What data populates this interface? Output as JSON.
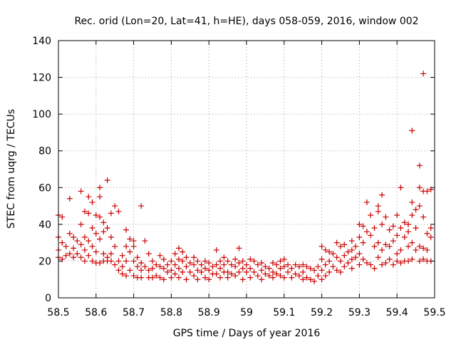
{
  "chart_data": {
    "type": "scatter",
    "title": "Rec. orid (Lon=20, Lat=41, h=HE), days 058-059, 2016, window 002",
    "xlabel": "GPS time / Days of year 2016",
    "ylabel": "STEC from uqrg / TECUs",
    "xlim": [
      58.5,
      59.5
    ],
    "ylim": [
      0,
      140
    ],
    "xticks": [
      "58.5",
      "58.6",
      "58.7",
      "58.8",
      "58.9",
      "59",
      "59.1",
      "59.2",
      "59.3",
      "59.4",
      "59.5"
    ],
    "yticks": [
      "0",
      "20",
      "40",
      "60",
      "80",
      "100",
      "120",
      "140"
    ],
    "grid": true,
    "marker": "plus",
    "color": "#cc0000",
    "points": [
      [
        58.5,
        45
      ],
      [
        58.5,
        33
      ],
      [
        58.5,
        26
      ],
      [
        58.5,
        22
      ],
      [
        58.51,
        44
      ],
      [
        58.51,
        30
      ],
      [
        58.51,
        21
      ],
      [
        58.52,
        28
      ],
      [
        58.52,
        23
      ],
      [
        58.53,
        54
      ],
      [
        58.53,
        35
      ],
      [
        58.53,
        24
      ],
      [
        58.54,
        33
      ],
      [
        58.54,
        27
      ],
      [
        58.54,
        22
      ],
      [
        58.55,
        31
      ],
      [
        58.55,
        24
      ],
      [
        58.56,
        58
      ],
      [
        58.56,
        40
      ],
      [
        58.56,
        29
      ],
      [
        58.56,
        22
      ],
      [
        58.57,
        47
      ],
      [
        58.57,
        33
      ],
      [
        58.57,
        26
      ],
      [
        58.57,
        20
      ],
      [
        58.58,
        55
      ],
      [
        58.58,
        46
      ],
      [
        58.58,
        31
      ],
      [
        58.58,
        23
      ],
      [
        58.59,
        52
      ],
      [
        58.59,
        38
      ],
      [
        58.59,
        28
      ],
      [
        58.59,
        20
      ],
      [
        58.6,
        45
      ],
      [
        58.6,
        35
      ],
      [
        58.6,
        25
      ],
      [
        58.6,
        19
      ],
      [
        58.61,
        60
      ],
      [
        58.61,
        55
      ],
      [
        58.61,
        44
      ],
      [
        58.61,
        32
      ],
      [
        58.61,
        19
      ],
      [
        58.62,
        41
      ],
      [
        58.62,
        36
      ],
      [
        58.62,
        24
      ],
      [
        58.62,
        20
      ],
      [
        58.63,
        64
      ],
      [
        58.63,
        38
      ],
      [
        58.63,
        22
      ],
      [
        58.63,
        20
      ],
      [
        58.64,
        46
      ],
      [
        58.64,
        33
      ],
      [
        58.64,
        24
      ],
      [
        58.64,
        20
      ],
      [
        58.65,
        50
      ],
      [
        58.65,
        28
      ],
      [
        58.65,
        18
      ],
      [
        58.66,
        47
      ],
      [
        58.66,
        20
      ],
      [
        58.66,
        15
      ],
      [
        58.67,
        23
      ],
      [
        58.67,
        17
      ],
      [
        58.67,
        13
      ],
      [
        58.68,
        37
      ],
      [
        58.68,
        28
      ],
      [
        58.68,
        20
      ],
      [
        58.68,
        12
      ],
      [
        58.69,
        32
      ],
      [
        58.69,
        25
      ],
      [
        58.69,
        15
      ],
      [
        58.7,
        31
      ],
      [
        58.7,
        28
      ],
      [
        58.7,
        20
      ],
      [
        58.7,
        12
      ],
      [
        58.71,
        22
      ],
      [
        58.71,
        17
      ],
      [
        58.71,
        11
      ],
      [
        58.72,
        50
      ],
      [
        58.72,
        19
      ],
      [
        58.72,
        15
      ],
      [
        58.72,
        11
      ],
      [
        58.73,
        31
      ],
      [
        58.73,
        17
      ],
      [
        58.74,
        24
      ],
      [
        58.74,
        15
      ],
      [
        58.74,
        11
      ],
      [
        58.75,
        20
      ],
      [
        58.75,
        16
      ],
      [
        58.75,
        11
      ],
      [
        58.76,
        18
      ],
      [
        58.76,
        12
      ],
      [
        58.77,
        23
      ],
      [
        58.77,
        17
      ],
      [
        58.77,
        11
      ],
      [
        58.78,
        21
      ],
      [
        58.78,
        16
      ],
      [
        58.78,
        10
      ],
      [
        58.79,
        18
      ],
      [
        58.79,
        14
      ],
      [
        58.8,
        20
      ],
      [
        58.8,
        15
      ],
      [
        58.8,
        11
      ],
      [
        58.81,
        24
      ],
      [
        58.81,
        18
      ],
      [
        58.81,
        13
      ],
      [
        58.82,
        27
      ],
      [
        58.82,
        21
      ],
      [
        58.82,
        16
      ],
      [
        58.82,
        11
      ],
      [
        58.83,
        25
      ],
      [
        58.83,
        20
      ],
      [
        58.83,
        14
      ],
      [
        58.84,
        22
      ],
      [
        58.84,
        17
      ],
      [
        58.84,
        10
      ],
      [
        58.85,
        19
      ],
      [
        58.85,
        14
      ],
      [
        58.86,
        22
      ],
      [
        58.86,
        18
      ],
      [
        58.86,
        12
      ],
      [
        58.87,
        20
      ],
      [
        58.87,
        15
      ],
      [
        58.87,
        10
      ],
      [
        58.88,
        18
      ],
      [
        58.88,
        14
      ],
      [
        58.89,
        20
      ],
      [
        58.89,
        16
      ],
      [
        58.89,
        11
      ],
      [
        58.9,
        19
      ],
      [
        58.9,
        15
      ],
      [
        58.9,
        10
      ],
      [
        58.91,
        17
      ],
      [
        58.91,
        13
      ],
      [
        58.92,
        26
      ],
      [
        58.92,
        18
      ],
      [
        58.92,
        13
      ],
      [
        58.93,
        20
      ],
      [
        58.93,
        16
      ],
      [
        58.93,
        11
      ],
      [
        58.94,
        22
      ],
      [
        58.94,
        18
      ],
      [
        58.94,
        14
      ],
      [
        58.95,
        20
      ],
      [
        58.95,
        14
      ],
      [
        58.95,
        11
      ],
      [
        58.96,
        18
      ],
      [
        58.96,
        13
      ],
      [
        58.97,
        21
      ],
      [
        58.97,
        17
      ],
      [
        58.97,
        12
      ],
      [
        58.98,
        27
      ],
      [
        58.98,
        19
      ],
      [
        58.98,
        14
      ],
      [
        58.99,
        20
      ],
      [
        58.99,
        16
      ],
      [
        58.99,
        10
      ],
      [
        59.0,
        18
      ],
      [
        59.0,
        14
      ],
      [
        59.01,
        21
      ],
      [
        59.01,
        16
      ],
      [
        59.01,
        11
      ],
      [
        59.02,
        20
      ],
      [
        59.02,
        14
      ],
      [
        59.03,
        18
      ],
      [
        59.03,
        12
      ],
      [
        59.04,
        19
      ],
      [
        59.04,
        15
      ],
      [
        59.04,
        10
      ],
      [
        59.05,
        17
      ],
      [
        59.05,
        13
      ],
      [
        59.06,
        16
      ],
      [
        59.06,
        12
      ],
      [
        59.07,
        19
      ],
      [
        59.07,
        14
      ],
      [
        59.07,
        11
      ],
      [
        59.08,
        18
      ],
      [
        59.08,
        13
      ],
      [
        59.09,
        20
      ],
      [
        59.09,
        16
      ],
      [
        59.09,
        12
      ],
      [
        59.1,
        21
      ],
      [
        59.1,
        17
      ],
      [
        59.1,
        11
      ],
      [
        59.11,
        18
      ],
      [
        59.11,
        14
      ],
      [
        59.12,
        16
      ],
      [
        59.12,
        11
      ],
      [
        59.13,
        18
      ],
      [
        59.13,
        13
      ],
      [
        59.14,
        17
      ],
      [
        59.14,
        12
      ],
      [
        59.15,
        18
      ],
      [
        59.15,
        14
      ],
      [
        59.15,
        10
      ],
      [
        59.16,
        17
      ],
      [
        59.16,
        11
      ],
      [
        59.17,
        16
      ],
      [
        59.17,
        10
      ],
      [
        59.18,
        15
      ],
      [
        59.18,
        9
      ],
      [
        59.19,
        17
      ],
      [
        59.19,
        12
      ],
      [
        59.2,
        28
      ],
      [
        59.2,
        21
      ],
      [
        59.2,
        15
      ],
      [
        59.2,
        10
      ],
      [
        59.21,
        26
      ],
      [
        59.21,
        18
      ],
      [
        59.21,
        12
      ],
      [
        59.22,
        25
      ],
      [
        59.22,
        20
      ],
      [
        59.22,
        14
      ],
      [
        59.23,
        24
      ],
      [
        59.23,
        17
      ],
      [
        59.24,
        30
      ],
      [
        59.24,
        22
      ],
      [
        59.24,
        15
      ],
      [
        59.25,
        28
      ],
      [
        59.25,
        20
      ],
      [
        59.25,
        14
      ],
      [
        59.26,
        29
      ],
      [
        59.26,
        23
      ],
      [
        59.26,
        17
      ],
      [
        59.27,
        25
      ],
      [
        59.27,
        19
      ],
      [
        59.28,
        31
      ],
      [
        59.28,
        26
      ],
      [
        59.28,
        21
      ],
      [
        59.28,
        16
      ],
      [
        59.29,
        28
      ],
      [
        59.29,
        22
      ],
      [
        59.3,
        40
      ],
      [
        59.3,
        33
      ],
      [
        59.3,
        24
      ],
      [
        59.3,
        18
      ],
      [
        59.31,
        39
      ],
      [
        59.31,
        30
      ],
      [
        59.31,
        21
      ],
      [
        59.32,
        52
      ],
      [
        59.32,
        36
      ],
      [
        59.32,
        19
      ],
      [
        59.33,
        45
      ],
      [
        59.33,
        34
      ],
      [
        59.33,
        18
      ],
      [
        59.34,
        38
      ],
      [
        59.34,
        28
      ],
      [
        59.34,
        16
      ],
      [
        59.35,
        50
      ],
      [
        59.35,
        47
      ],
      [
        59.35,
        30
      ],
      [
        59.35,
        22
      ],
      [
        59.36,
        56
      ],
      [
        59.36,
        40
      ],
      [
        59.36,
        26
      ],
      [
        59.36,
        18
      ],
      [
        59.37,
        44
      ],
      [
        59.37,
        29
      ],
      [
        59.37,
        19
      ],
      [
        59.38,
        37
      ],
      [
        59.38,
        28
      ],
      [
        59.38,
        21
      ],
      [
        59.39,
        39
      ],
      [
        59.39,
        31
      ],
      [
        59.39,
        18
      ],
      [
        59.4,
        45
      ],
      [
        59.4,
        34
      ],
      [
        59.4,
        24
      ],
      [
        59.4,
        20
      ],
      [
        59.41,
        60
      ],
      [
        59.41,
        38
      ],
      [
        59.41,
        26
      ],
      [
        59.41,
        19
      ],
      [
        59.42,
        41
      ],
      [
        59.42,
        33
      ],
      [
        59.42,
        20
      ],
      [
        59.43,
        40
      ],
      [
        59.43,
        36
      ],
      [
        59.43,
        28
      ],
      [
        59.43,
        20
      ],
      [
        59.44,
        91
      ],
      [
        59.44,
        52
      ],
      [
        59.44,
        45
      ],
      [
        59.44,
        30
      ],
      [
        59.44,
        21
      ],
      [
        59.45,
        48
      ],
      [
        59.45,
        38
      ],
      [
        59.45,
        26
      ],
      [
        59.46,
        72
      ],
      [
        59.46,
        60
      ],
      [
        59.46,
        50
      ],
      [
        59.46,
        28
      ],
      [
        59.46,
        20
      ],
      [
        59.47,
        122
      ],
      [
        59.47,
        58
      ],
      [
        59.47,
        44
      ],
      [
        59.47,
        27
      ],
      [
        59.47,
        21
      ],
      [
        59.48,
        58
      ],
      [
        59.48,
        35
      ],
      [
        59.48,
        26
      ],
      [
        59.48,
        20
      ],
      [
        59.49,
        59
      ],
      [
        59.49,
        38
      ],
      [
        59.49,
        33
      ],
      [
        59.49,
        20
      ]
    ]
  }
}
